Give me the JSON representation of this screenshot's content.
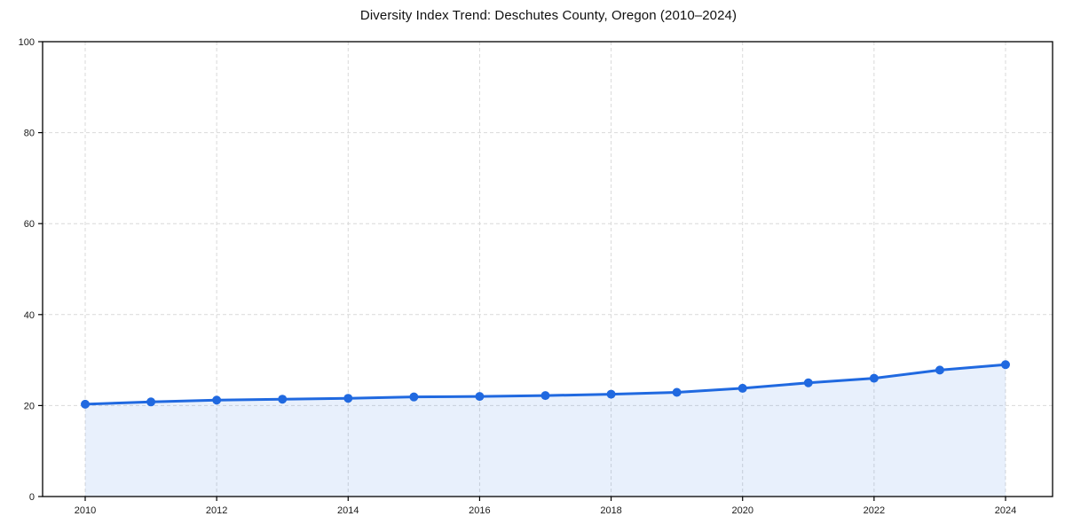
{
  "chart_data": {
    "type": "line",
    "title": "Diversity Index Trend: Deschutes County, Oregon (2010–2024)",
    "xlabel": "",
    "ylabel": "",
    "x": [
      2010,
      2011,
      2012,
      2013,
      2014,
      2015,
      2016,
      2017,
      2018,
      2019,
      2020,
      2021,
      2022,
      2023,
      2024
    ],
    "series": [
      {
        "name": "Diversity Index",
        "values": [
          20.3,
          20.8,
          21.2,
          21.4,
          21.6,
          21.9,
          22.0,
          22.2,
          22.5,
          22.9,
          23.8,
          25.0,
          26.0,
          27.8,
          29.0
        ]
      }
    ],
    "xlim": [
      2010,
      2024
    ],
    "ylim": [
      0,
      100
    ],
    "xticks": [
      2010,
      2012,
      2014,
      2016,
      2018,
      2020,
      2022,
      2024
    ],
    "yticks": [
      0,
      20,
      40,
      60,
      80,
      100
    ],
    "grid": true,
    "grid_style": "dashed",
    "legend_position": "none",
    "line_color": "#2069e0",
    "marker_color": "#2069e0",
    "area_fill": true,
    "area_opacity": 0.1,
    "grid_color": "#d9d9d9",
    "axis_color": "#000000",
    "tick_label_color": "#1a1a1a",
    "title_color": "#111111",
    "background_color": "#ffffff"
  }
}
